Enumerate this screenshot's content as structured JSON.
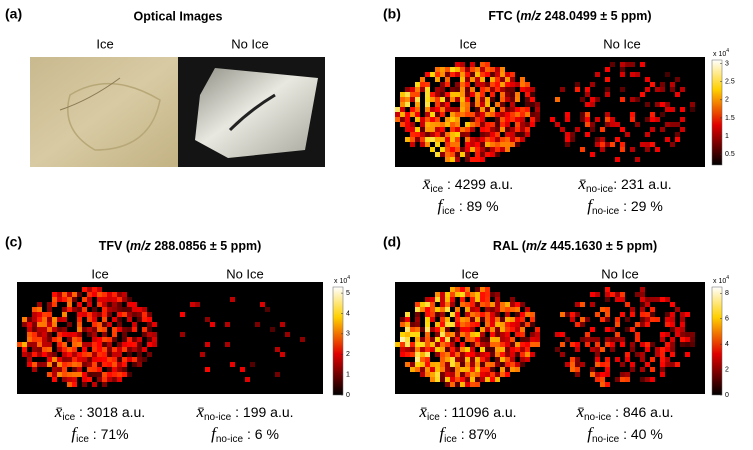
{
  "panels": [
    {
      "label": "(a)",
      "title": "Optical Images",
      "columns": [
        "Ice",
        "No Ice"
      ]
    },
    {
      "label": "(b)",
      "title": {
        "name": "FTC (",
        "italic": "m/z",
        "rest": " 248.0499 ± 5 ppm)"
      },
      "columns": [
        "Ice",
        "No Ice"
      ],
      "colorbar": {
        "scale": "x 10",
        "exponent": "4",
        "lim": [
          0.2,
          3.1
        ],
        "ticks": [
          0.5,
          1,
          1.5,
          2,
          2.5,
          3
        ]
      },
      "stats": [
        [
          {
            "symbol": "x̄",
            "sub": "ice",
            "text": " : 4299 a.u."
          },
          {
            "symbol": "f",
            "sub": "ice",
            "text": " : 89 %"
          }
        ],
        [
          {
            "symbol": "x̄",
            "sub": "no-ice",
            "text": ": 231 a.u."
          },
          {
            "symbol": "f",
            "sub": "no-ice",
            "text": " : 29 %"
          }
        ]
      ]
    },
    {
      "label": "(c)",
      "title": {
        "name": "TFV (",
        "italic": "m/z",
        "rest": " 288.0856 ± 5 ppm)"
      },
      "columns": [
        "Ice",
        "No Ice"
      ],
      "colorbar": {
        "scale": "x 10",
        "exponent": "4",
        "lim": [
          0,
          5.3
        ],
        "ticks": [
          0,
          1,
          2,
          3,
          4,
          5
        ]
      },
      "stats": [
        [
          {
            "symbol": "x̄",
            "sub": "ice",
            "text": " : 3018 a.u."
          },
          {
            "symbol": "f",
            "sub": "ice",
            "text": " : 71%"
          }
        ],
        [
          {
            "symbol": "x̄",
            "sub": "no-ice",
            "text": " : 199 a.u."
          },
          {
            "symbol": "f",
            "sub": "no-ice",
            "text": " : 6 %"
          }
        ]
      ]
    },
    {
      "label": "(d)",
      "title": {
        "name": "RAL (",
        "italic": "m/z",
        "rest": " 445.1630  ± 5 ppm)"
      },
      "columns": [
        "Ice",
        "No Ice"
      ],
      "colorbar": {
        "scale": "x 10",
        "exponent": "4",
        "lim": [
          0,
          8.5
        ],
        "ticks": [
          0,
          2,
          4,
          6,
          8
        ]
      },
      "stats": [
        [
          {
            "symbol": "x̄",
            "sub": "ice",
            "text": " : 11096 a.u."
          },
          {
            "symbol": "f",
            "sub": "ice",
            "text": " : 87%"
          }
        ],
        [
          {
            "symbol": "x̄",
            "sub": "no-ice",
            "text": " : 846 a.u."
          },
          {
            "symbol": "f",
            "sub": "no-ice",
            "text": " : 40 %"
          }
        ]
      ]
    }
  ]
}
